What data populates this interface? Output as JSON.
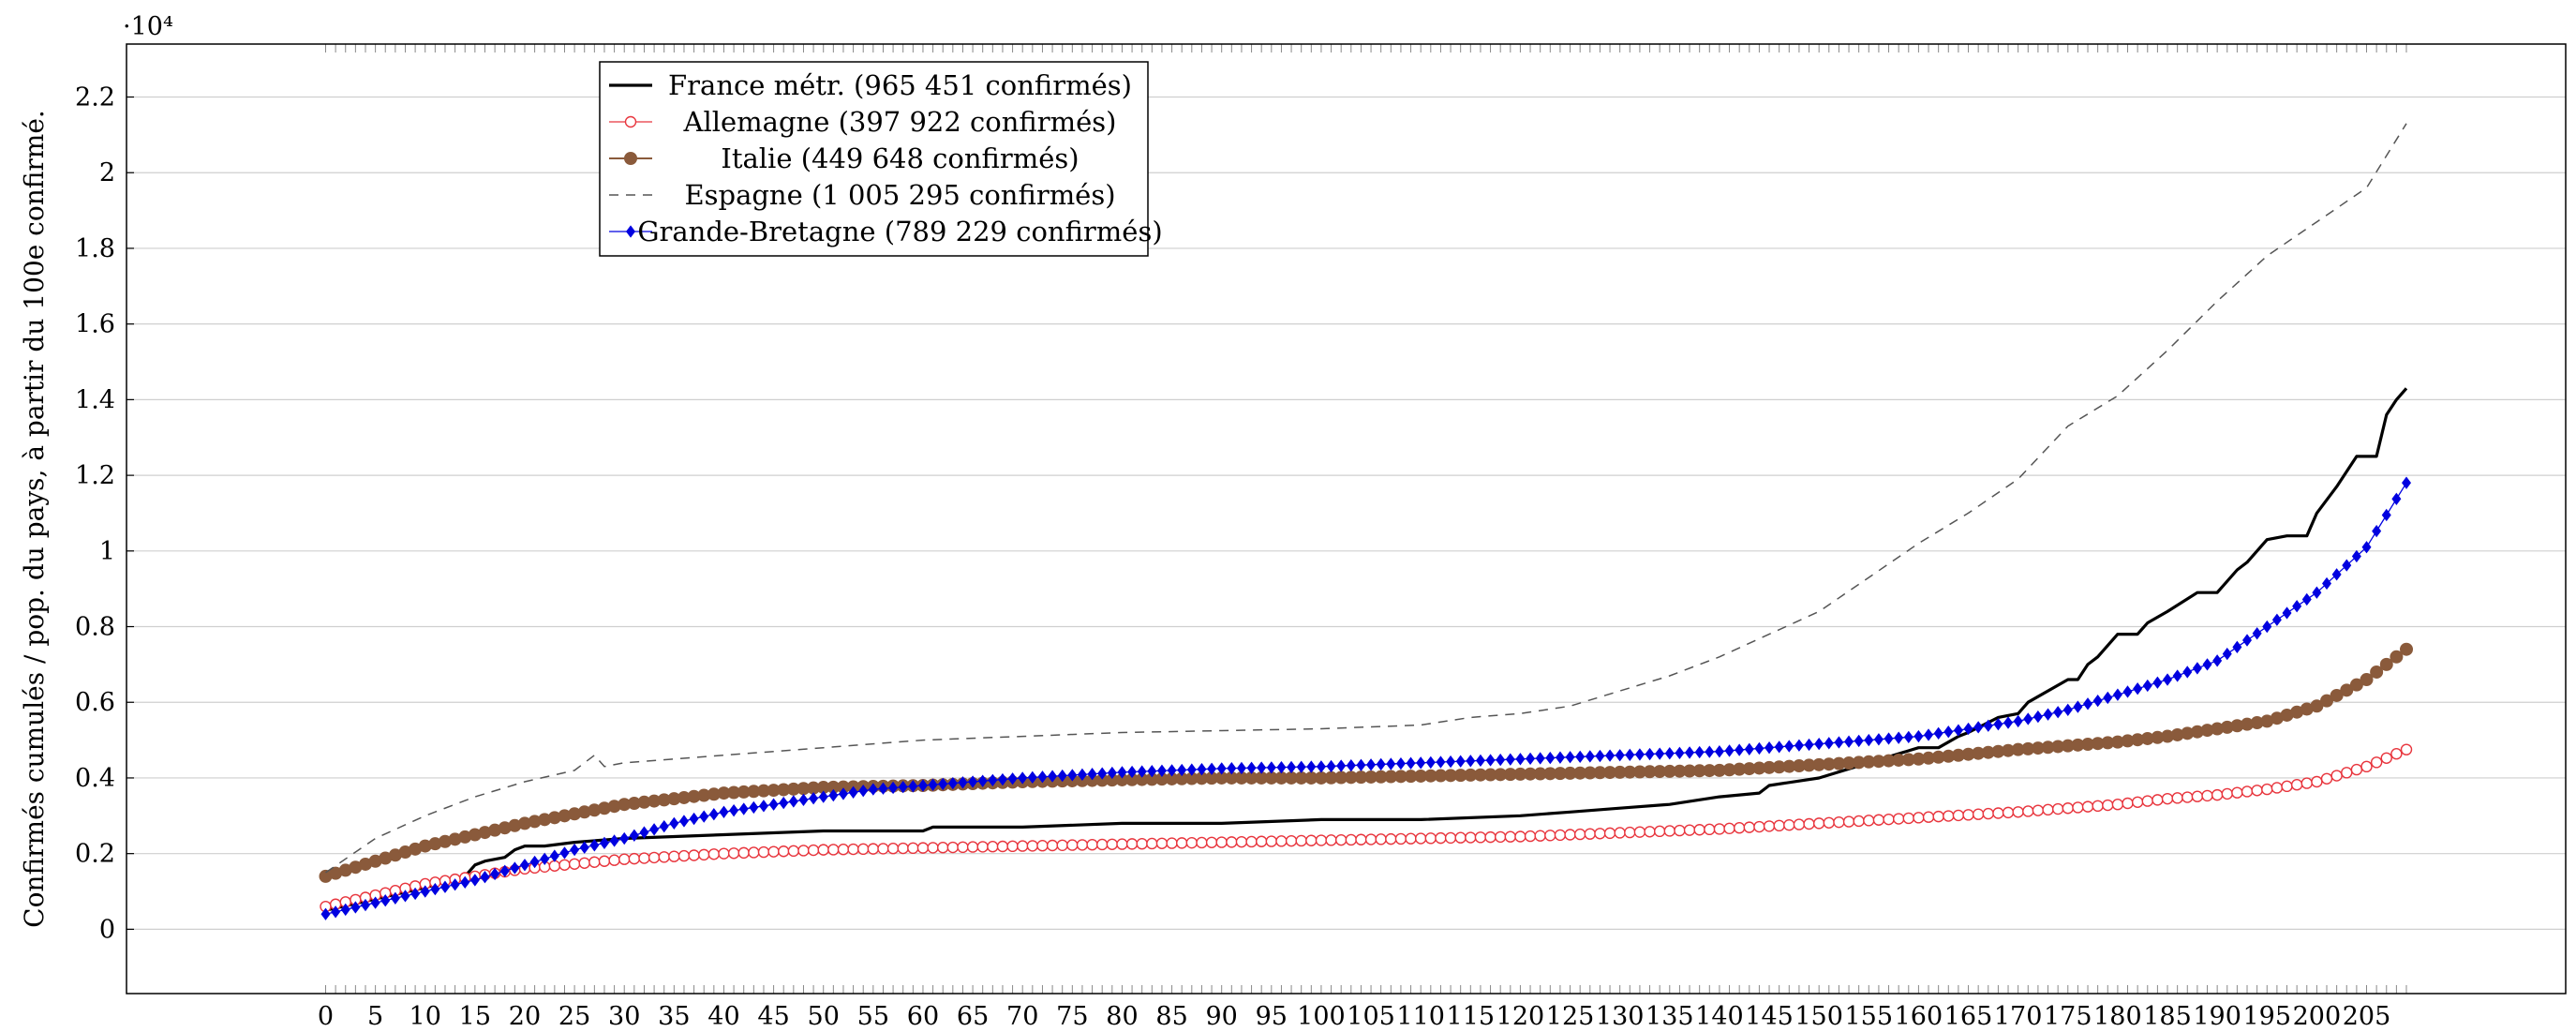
{
  "chart_data": {
    "type": "line",
    "title": "",
    "xlabel": "",
    "ylabel": "Confirmés cumulés / pop. du pays, à partir du 100e confirmé.",
    "y_multiplier_label": "·10⁴",
    "xlim": [
      -20,
      225
    ],
    "ylim": [
      -0.17,
      2.34
    ],
    "x_ticks": [
      0,
      5,
      10,
      15,
      20,
      25,
      30,
      35,
      40,
      45,
      50,
      55,
      60,
      65,
      70,
      75,
      80,
      85,
      90,
      95,
      100,
      105,
      110,
      115,
      120,
      125,
      130,
      135,
      140,
      145,
      150,
      155,
      160,
      165,
      170,
      175,
      180,
      185,
      190,
      195,
      200,
      205
    ],
    "y_ticks": [
      0,
      0.2,
      0.4,
      0.6,
      0.8,
      1,
      1.2,
      1.4,
      1.6,
      1.8,
      2,
      2.2
    ],
    "y_tick_labels": [
      "0",
      "0.2",
      "0.4",
      "0.6",
      "0.8",
      "1",
      "1.2",
      "1.4",
      "1.6",
      "1.8",
      "2",
      "2.2"
    ],
    "grid": "horizontal",
    "legend_position": "top-left",
    "n_days": 210,
    "series": [
      {
        "name": "France métr. (965 451 confirmés)",
        "color": "#000000",
        "style": "solid-thick",
        "marker": "none",
        "x": [
          0,
          5,
          10,
          14,
          15,
          16,
          18,
          19,
          20,
          22,
          25,
          30,
          40,
          50,
          60,
          61,
          65,
          70,
          80,
          90,
          100,
          110,
          120,
          125,
          130,
          135,
          140,
          144,
          145,
          150,
          155,
          160,
          162,
          164,
          165,
          168,
          170,
          171,
          175,
          176,
          177,
          178,
          180,
          181,
          182,
          183,
          185,
          188,
          190,
          192,
          193,
          195,
          197,
          199,
          200,
          202,
          204,
          205,
          206,
          207,
          208,
          209
        ],
        "y": [
          0.05,
          0.08,
          0.11,
          0.14,
          0.17,
          0.18,
          0.19,
          0.21,
          0.22,
          0.22,
          0.23,
          0.24,
          0.25,
          0.26,
          0.26,
          0.27,
          0.27,
          0.27,
          0.28,
          0.28,
          0.29,
          0.29,
          0.3,
          0.31,
          0.32,
          0.33,
          0.35,
          0.36,
          0.38,
          0.4,
          0.44,
          0.48,
          0.48,
          0.51,
          0.52,
          0.56,
          0.57,
          0.6,
          0.66,
          0.66,
          0.7,
          0.72,
          0.78,
          0.78,
          0.78,
          0.81,
          0.84,
          0.89,
          0.89,
          0.95,
          0.97,
          1.03,
          1.04,
          1.04,
          1.1,
          1.17,
          1.25,
          1.25,
          1.25,
          1.36,
          1.4,
          1.43
        ]
      },
      {
        "name": "Allemagne (397 922 confirmés)",
        "color": "#e8353d",
        "style": "solid-thin",
        "marker": "open-circle",
        "x": [
          0,
          10,
          20,
          30,
          40,
          50,
          60,
          70,
          80,
          90,
          100,
          110,
          120,
          130,
          140,
          150,
          160,
          170,
          180,
          185,
          190,
          195,
          200,
          205,
          209
        ],
        "y": [
          0.06,
          0.12,
          0.16,
          0.185,
          0.2,
          0.21,
          0.215,
          0.22,
          0.225,
          0.23,
          0.235,
          0.24,
          0.245,
          0.255,
          0.265,
          0.28,
          0.295,
          0.31,
          0.33,
          0.345,
          0.355,
          0.37,
          0.39,
          0.43,
          0.475
        ]
      },
      {
        "name": "Italie (449 648 confirmés)",
        "color": "#8a5a3b",
        "style": "solid",
        "marker": "filled-circle",
        "x": [
          0,
          10,
          20,
          30,
          40,
          50,
          60,
          70,
          80,
          90,
          100,
          110,
          120,
          130,
          140,
          150,
          160,
          170,
          180,
          185,
          190,
          195,
          200,
          205,
          209
        ],
        "y": [
          0.14,
          0.22,
          0.28,
          0.33,
          0.36,
          0.375,
          0.38,
          0.39,
          0.395,
          0.4,
          0.4,
          0.405,
          0.41,
          0.415,
          0.42,
          0.435,
          0.45,
          0.475,
          0.495,
          0.51,
          0.53,
          0.55,
          0.59,
          0.66,
          0.74
        ]
      },
      {
        "name": "Espagne (1 005 295 confirmés)",
        "color": "#555555",
        "style": "dashed",
        "marker": "none",
        "x": [
          0,
          5,
          10,
          15,
          20,
          25,
          27,
          28,
          30,
          35,
          40,
          50,
          60,
          70,
          80,
          90,
          100,
          110,
          115,
          120,
          125,
          130,
          135,
          140,
          145,
          150,
          155,
          160,
          165,
          170,
          175,
          180,
          185,
          190,
          195,
          200,
          205,
          209
        ],
        "y": [
          0.15,
          0.24,
          0.3,
          0.35,
          0.39,
          0.42,
          0.46,
          0.43,
          0.44,
          0.45,
          0.46,
          0.48,
          0.5,
          0.51,
          0.52,
          0.525,
          0.53,
          0.54,
          0.56,
          0.57,
          0.59,
          0.63,
          0.67,
          0.72,
          0.78,
          0.84,
          0.93,
          1.02,
          1.1,
          1.19,
          1.33,
          1.41,
          1.53,
          1.66,
          1.78,
          1.87,
          1.96,
          2.13
        ]
      },
      {
        "name": "Grande-Bretagne (789 229 confirmés)",
        "color": "#0000e0",
        "style": "solid-thin",
        "marker": "diamond",
        "x": [
          0,
          5,
          10,
          15,
          20,
          25,
          30,
          35,
          40,
          45,
          50,
          55,
          60,
          70,
          80,
          90,
          100,
          110,
          120,
          130,
          140,
          150,
          160,
          165,
          170,
          175,
          180,
          185,
          190,
          195,
          200,
          205,
          209
        ],
        "y": [
          0.04,
          0.07,
          0.1,
          0.13,
          0.17,
          0.21,
          0.24,
          0.28,
          0.31,
          0.33,
          0.35,
          0.37,
          0.38,
          0.4,
          0.415,
          0.425,
          0.43,
          0.44,
          0.45,
          0.46,
          0.47,
          0.49,
          0.51,
          0.53,
          0.55,
          0.58,
          0.62,
          0.66,
          0.71,
          0.8,
          0.89,
          1.01,
          1.18
        ]
      }
    ]
  }
}
